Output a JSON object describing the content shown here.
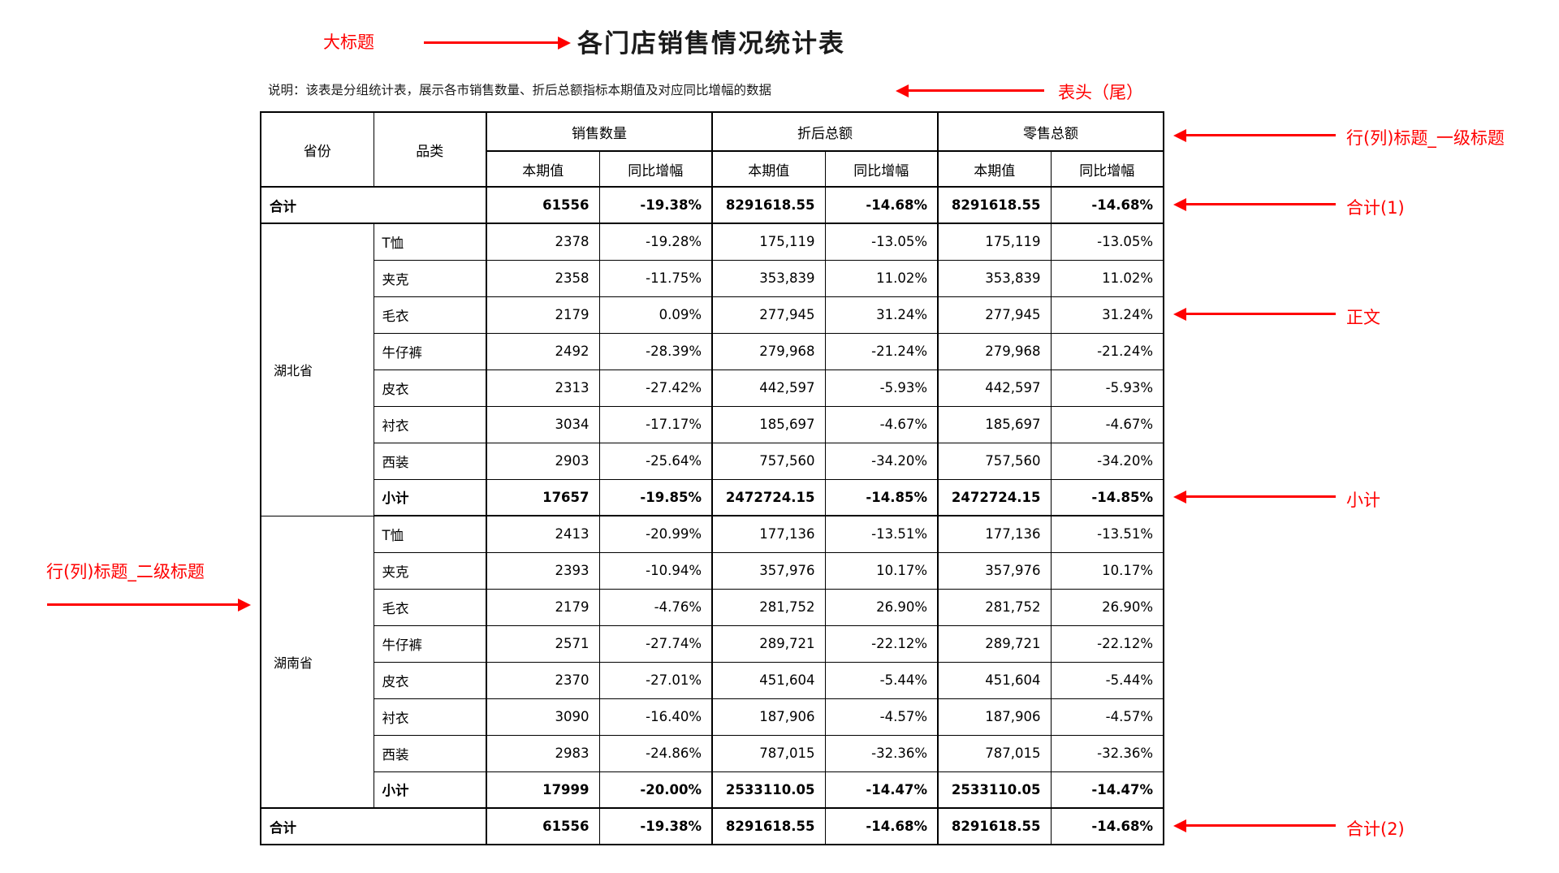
{
  "page": {
    "title": "各门店销售情况统计表",
    "description": "说明：该表是分组统计表，展示各市销售数量、折后总额指标本期值及对应同比增幅的数据"
  },
  "annotations": {
    "color": "#FF0000",
    "big_title": "大标题",
    "header_tail": "表头（尾）",
    "col_header_level1": "行(列)标题_一级标题",
    "total_1": "合计(1)",
    "body_text": "正文",
    "subtotal": "小计",
    "row_header_level2": "行(列)标题_二级标题",
    "total_2": "合计(2)"
  },
  "table": {
    "header": {
      "province": "省份",
      "category": "品类",
      "groups": [
        {
          "label": "销售数量",
          "sub": [
            "本期值",
            "同比增幅"
          ]
        },
        {
          "label": "折后总额",
          "sub": [
            "本期值",
            "同比增幅"
          ]
        },
        {
          "label": "零售总额",
          "sub": [
            "本期值",
            "同比增幅"
          ]
        }
      ]
    },
    "total_top": {
      "label": "合计",
      "values": [
        "61556",
        "-19.38%",
        "8291618.55",
        "-14.68%",
        "8291618.55",
        "-14.68%"
      ]
    },
    "groups": [
      {
        "province": "湖北省",
        "rows": [
          {
            "category": "T恤",
            "values": [
              "2378",
              "-19.28%",
              "175,119",
              "-13.05%",
              "175,119",
              "-13.05%"
            ]
          },
          {
            "category": "夹克",
            "values": [
              "2358",
              "-11.75%",
              "353,839",
              "11.02%",
              "353,839",
              "11.02%"
            ]
          },
          {
            "category": "毛衣",
            "values": [
              "2179",
              "0.09%",
              "277,945",
              "31.24%",
              "277,945",
              "31.24%"
            ]
          },
          {
            "category": "牛仔裤",
            "values": [
              "2492",
              "-28.39%",
              "279,968",
              "-21.24%",
              "279,968",
              "-21.24%"
            ]
          },
          {
            "category": "皮衣",
            "values": [
              "2313",
              "-27.42%",
              "442,597",
              "-5.93%",
              "442,597",
              "-5.93%"
            ]
          },
          {
            "category": "衬衣",
            "values": [
              "3034",
              "-17.17%",
              "185,697",
              "-4.67%",
              "185,697",
              "-4.67%"
            ]
          },
          {
            "category": "西装",
            "values": [
              "2903",
              "-25.64%",
              "757,560",
              "-34.20%",
              "757,560",
              "-34.20%"
            ]
          },
          {
            "category": "小计",
            "bold": true,
            "values": [
              "17657",
              "-19.85%",
              "2472724.15",
              "-14.85%",
              "2472724.15",
              "-14.85%"
            ]
          }
        ]
      },
      {
        "province": "湖南省",
        "rows": [
          {
            "category": "T恤",
            "values": [
              "2413",
              "-20.99%",
              "177,136",
              "-13.51%",
              "177,136",
              "-13.51%"
            ]
          },
          {
            "category": "夹克",
            "values": [
              "2393",
              "-10.94%",
              "357,976",
              "10.17%",
              "357,976",
              "10.17%"
            ]
          },
          {
            "category": "毛衣",
            "values": [
              "2179",
              "-4.76%",
              "281,752",
              "26.90%",
              "281,752",
              "26.90%"
            ]
          },
          {
            "category": "牛仔裤",
            "values": [
              "2571",
              "-27.74%",
              "289,721",
              "-22.12%",
              "289,721",
              "-22.12%"
            ]
          },
          {
            "category": "皮衣",
            "values": [
              "2370",
              "-27.01%",
              "451,604",
              "-5.44%",
              "451,604",
              "-5.44%"
            ]
          },
          {
            "category": "衬衣",
            "values": [
              "3090",
              "-16.40%",
              "187,906",
              "-4.57%",
              "187,906",
              "-4.57%"
            ]
          },
          {
            "category": "西装",
            "values": [
              "2983",
              "-24.86%",
              "787,015",
              "-32.36%",
              "787,015",
              "-32.36%"
            ]
          },
          {
            "category": "小计",
            "bold": true,
            "values": [
              "17999",
              "-20.00%",
              "2533110.05",
              "-14.47%",
              "2533110.05",
              "-14.47%"
            ]
          }
        ]
      }
    ],
    "total_bottom": {
      "label": "合计",
      "values": [
        "61556",
        "-19.38%",
        "8291618.55",
        "-14.68%",
        "8291618.55",
        "-14.68%"
      ]
    }
  }
}
